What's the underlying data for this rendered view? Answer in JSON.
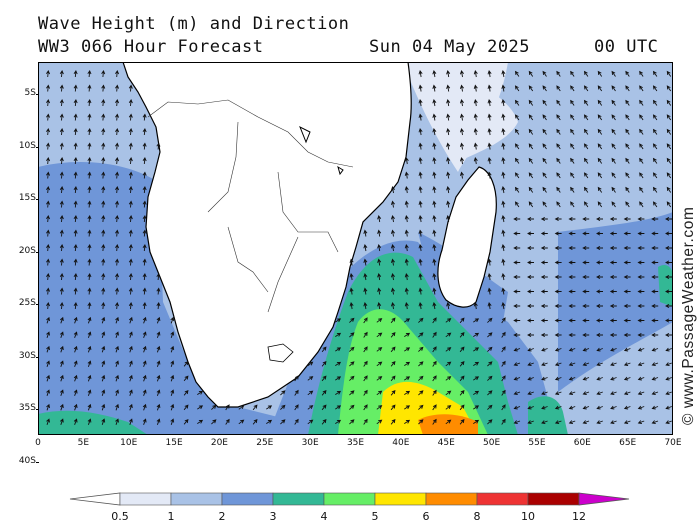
{
  "header": {
    "title": "Wave Height (m) and Direction",
    "model": "WW3 066 Hour Forecast",
    "date": "Sun 04 May 2025",
    "time": "00 UTC"
  },
  "axes": {
    "lat_ticks": [
      "5S",
      "10S",
      "15S",
      "20S",
      "25S",
      "30S",
      "35S",
      "40S"
    ],
    "lon_ticks": [
      "0",
      "5E",
      "10E",
      "15E",
      "20E",
      "25E",
      "30E",
      "35E",
      "40E",
      "45E",
      "50E",
      "55E",
      "60E",
      "65E",
      "70E"
    ]
  },
  "legend": {
    "thresholds": [
      "0.5",
      "1",
      "2",
      "3",
      "4",
      "5",
      "6",
      "8",
      "10",
      "12"
    ],
    "colors": [
      "#ffffff",
      "#e3e9f6",
      "#a9c2e6",
      "#6f96d8",
      "#33b895",
      "#66ee66",
      "#ffe600",
      "#ff8c00",
      "#ee3333",
      "#aa0000",
      "#cc00cc"
    ]
  },
  "watermark": "© www.PassageWeather.com",
  "region": {
    "lon_range": [
      0,
      70
    ],
    "lat_range": [
      -40,
      -2
    ],
    "land_color": "#ffffff",
    "coast_color": "#000000",
    "arrow_color": "#111111"
  }
}
